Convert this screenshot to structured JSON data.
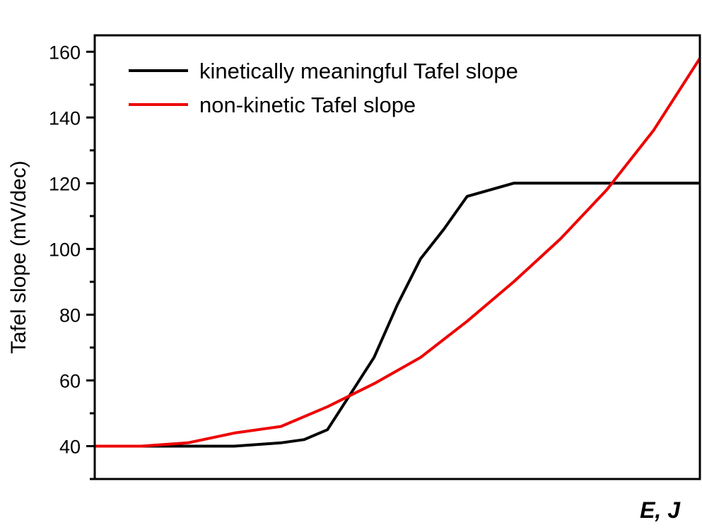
{
  "chart_data": {
    "type": "line",
    "title": "",
    "xlabel": "E, J",
    "ylabel": "Tafel slope (mV/dec)",
    "xlim": [
      0,
      26
    ],
    "ylim": [
      30,
      165
    ],
    "yticks": [
      40,
      60,
      80,
      100,
      120,
      140,
      160
    ],
    "grid": false,
    "legend_position": "top-left",
    "series": [
      {
        "name": "kinetically meaningful Tafel slope",
        "color": "#000000",
        "x": [
          0,
          2,
          4,
          6,
          8,
          9,
          10,
          11,
          12,
          13,
          14,
          15,
          16,
          18,
          20,
          22,
          24,
          26
        ],
        "y": [
          40,
          40,
          40,
          40,
          41,
          42,
          45,
          56,
          67,
          83,
          97,
          106,
          116,
          120,
          120,
          120,
          120,
          120
        ]
      },
      {
        "name": "non-kinetic Tafel slope",
        "color": "#ee0000",
        "x": [
          0,
          2,
          4,
          6,
          8,
          10,
          12,
          14,
          16,
          18,
          20,
          22,
          24,
          26
        ],
        "y": [
          40,
          40,
          41,
          44,
          46,
          52,
          59,
          67,
          78,
          90,
          103,
          118,
          136,
          158
        ]
      }
    ]
  }
}
